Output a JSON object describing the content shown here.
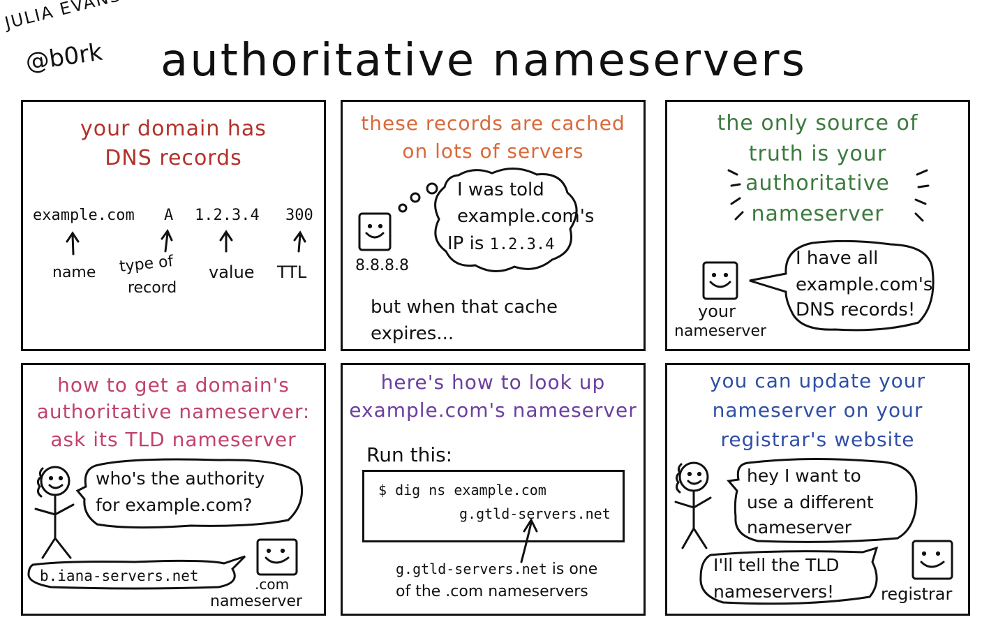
{
  "header": {
    "author": "JULIA EVANS",
    "handle": "@b0rk",
    "title": "authoritative nameservers"
  },
  "panel1": {
    "heading_line1": "your domain has",
    "heading_line2": "DNS records",
    "record": [
      "example.com",
      "A",
      "1.2.3.4",
      "300"
    ],
    "label_name": "name",
    "label_type_line1": "type of",
    "label_type_line2": "record",
    "label_value": "value",
    "label_ttl": "TTL"
  },
  "panel2": {
    "heading_line1": "these records are cached",
    "heading_line2": "on lots of servers",
    "thought_line1": "I was told",
    "thought_line2": "example.com's",
    "thought_line3_a": "IP is",
    "thought_line3_b": "1.2.3.4",
    "server_label": "8.8.8.8",
    "footer_line1": "but when that cache",
    "footer_line2": "expires..."
  },
  "panel3": {
    "heading_line1": "the only source of",
    "heading_line2": "truth is your",
    "heading_line3": "authoritative",
    "heading_line4": "nameserver",
    "speech_line1": "I have all",
    "speech_line2": "example.com's",
    "speech_line3": "DNS records!",
    "server_label_line1": "your",
    "server_label_line2": "nameserver"
  },
  "panel4": {
    "heading_line1": "how to get a domain's",
    "heading_line2": "authoritative nameserver:",
    "heading_line3": "ask its TLD nameserver",
    "question_line1": "who's the authority",
    "question_line2": "for example.com?",
    "answer": "b.iana-servers.net",
    "server_label_line1": ".com",
    "server_label_line2": "nameserver"
  },
  "panel5": {
    "heading_line1": "here's how to look up",
    "heading_line2": "example.com's nameserver",
    "run_label": "Run this:",
    "command": "$ dig ns example.com",
    "output": "g.gtld-servers.net",
    "note_line1_a": "g.gtld-servers.net",
    "note_line1_b": "is one",
    "note_line2": "of the .com nameservers"
  },
  "panel6": {
    "heading_line1": "you can update your",
    "heading_line2": "nameserver on your",
    "heading_line3": "registrar's website",
    "request_line1": "hey I want to",
    "request_line2": "use a different",
    "request_line3": "nameserver",
    "reply_line1": "I'll tell the TLD",
    "reply_line2": "nameservers!",
    "server_label": "registrar"
  },
  "colors": {
    "panel1_heading": "#b3312b",
    "panel2_heading": "#d9693a",
    "panel3_heading": "#3b7a3e",
    "panel4_heading": "#c2416e",
    "panel5_heading": "#6b3fa0",
    "panel6_heading": "#2f4fa6"
  }
}
